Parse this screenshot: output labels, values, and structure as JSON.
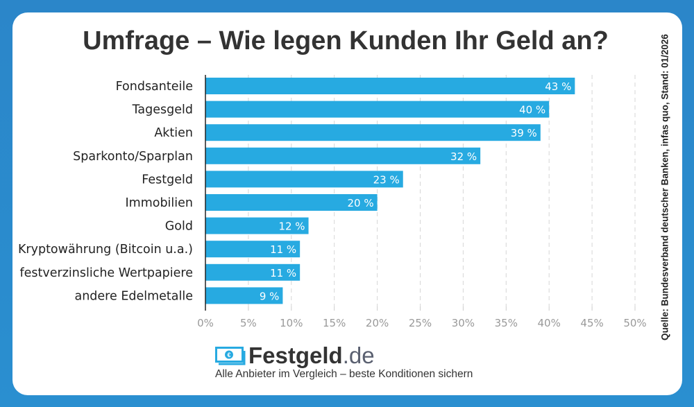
{
  "title": "Umfrage – Wie legen Kunden Ihr Geld an?",
  "source": "Quelle: Bundesverband deutscher Banken, infas quo, Stand: 01/2026",
  "colors": {
    "bar": "#27aae1",
    "background": "#2b86c9",
    "text": "#333333"
  },
  "brand": {
    "name": "Festgeld",
    "tld": ".de",
    "tagline": "Alle Anbieter im Vergleich – beste Konditionen sichern",
    "icon": "euro-banknote-icon"
  },
  "chart_data": {
    "type": "bar",
    "orientation": "horizontal",
    "categories": [
      "Fondsanteile",
      "Tagesgeld",
      "Aktien",
      "Sparkonto/Sparplan",
      "Festgeld",
      "Immobilien",
      "Gold",
      "Kryptowährung (Bitcoin u.a.)",
      "festverzinsliche Wertpapiere",
      "andere Edelmetalle"
    ],
    "values": [
      43,
      40,
      39,
      32,
      23,
      20,
      12,
      11,
      11,
      9
    ],
    "data_labels": [
      "43 %",
      "40 %",
      "39 %",
      "32 %",
      "23 %",
      "20 %",
      "12 %",
      "11 %",
      "11 %",
      "9 %"
    ],
    "xlim": [
      0,
      50
    ],
    "xticks": [
      "0%",
      "5%",
      "10%",
      "15%",
      "20%",
      "25%",
      "30%",
      "35%",
      "40%",
      "45%",
      "50%"
    ],
    "grid": true,
    "title": "Umfrage – Wie legen Kunden Ihr Geld an?"
  }
}
